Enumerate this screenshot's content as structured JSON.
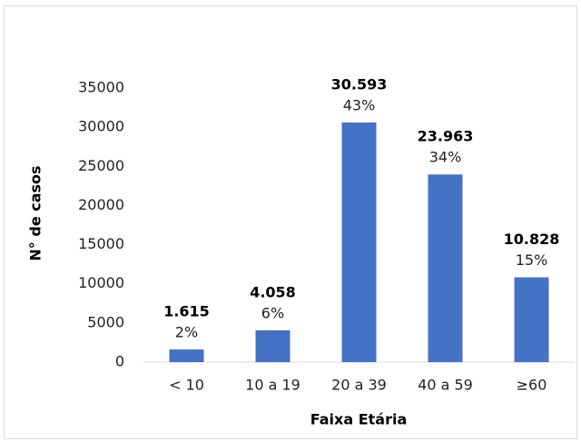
{
  "chart_data": {
    "type": "bar",
    "x_label": "Faixa Etária",
    "y_label": "N° de casos",
    "categories": [
      "< 10",
      "10 a 19",
      "20 a 39",
      "40 a 59",
      "≥60"
    ],
    "values": [
      1615,
      4058,
      30593,
      23963,
      10828
    ],
    "value_labels": [
      "1.615",
      "4.058",
      "30.593",
      "23.963",
      "10.828"
    ],
    "share_labels": [
      "2%",
      "6%",
      "43%",
      "34%",
      "15%"
    ],
    "color": "#4472c4",
    "ylim": [
      0,
      35000
    ],
    "yticks": [
      0,
      5000,
      10000,
      15000,
      20000,
      25000,
      30000,
      35000
    ],
    "grid": false
  }
}
